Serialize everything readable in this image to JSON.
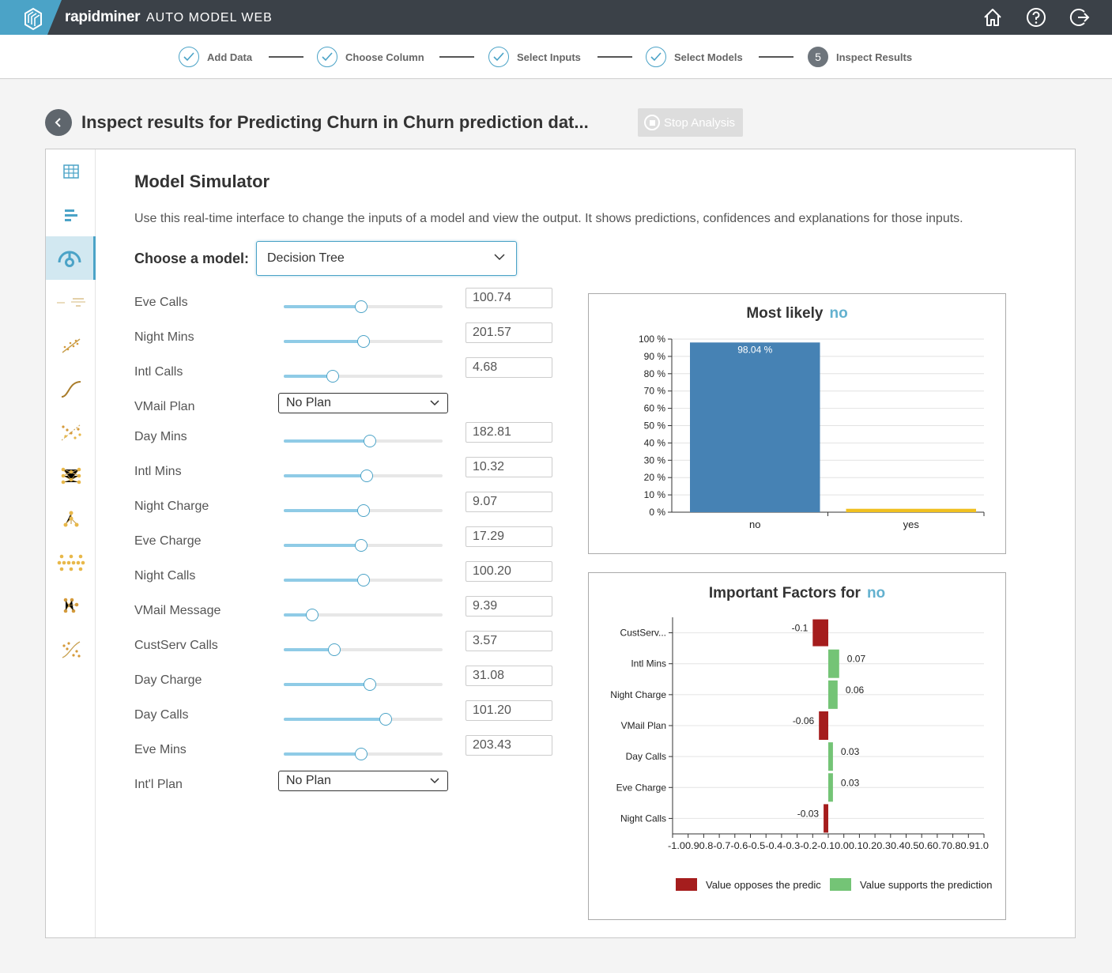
{
  "app": {
    "brand": "rapidminer",
    "product": "AUTO MODEL WEB",
    "icons": [
      "home-icon",
      "help-icon",
      "logout-icon"
    ]
  },
  "wizard": {
    "steps": [
      {
        "label": "Add Data",
        "state": "done"
      },
      {
        "label": "Choose Column",
        "state": "done"
      },
      {
        "label": "Select Inputs",
        "state": "done"
      },
      {
        "label": "Select Models",
        "state": "done"
      },
      {
        "label": "Inspect Results",
        "state": "current",
        "number": "5"
      }
    ]
  },
  "header": {
    "title": "Inspect results for Predicting Churn in Churn prediction dat...",
    "stop_label": "Stop Analysis"
  },
  "sidenav": {
    "items": [
      "table-icon",
      "bar-list-icon",
      "simulator-icon",
      "formula-icon",
      "scatter-line-icon",
      "curve-icon",
      "scatter-dots-icon",
      "neural-net-icon",
      "tree-icon",
      "forest-icon",
      "boosted-tree-icon",
      "svm-icon"
    ],
    "active_index": 2
  },
  "simulator": {
    "title": "Model Simulator",
    "description": "Use this real-time interface to change the inputs of a model and view the output. It shows predictions, confidences and explanations for those inputs.",
    "choose_label": "Choose a model:",
    "model_selected": "Decision Tree",
    "inputs": [
      {
        "label": "Eve Calls",
        "type": "slider",
        "value": "100.74",
        "level": 0.49
      },
      {
        "label": "Night Mins",
        "type": "slider",
        "value": "201.57",
        "level": 0.5
      },
      {
        "label": "Intl Calls",
        "type": "slider",
        "value": "4.68",
        "level": 0.31
      },
      {
        "label": "VMail Plan",
        "type": "select",
        "value": "No Plan"
      },
      {
        "label": "Day Mins",
        "type": "slider",
        "value": "182.81",
        "level": 0.54
      },
      {
        "label": "Intl Mins",
        "type": "slider",
        "value": "10.32",
        "level": 0.52
      },
      {
        "label": "Night Charge",
        "type": "slider",
        "value": "9.07",
        "level": 0.5
      },
      {
        "label": "Eve Charge",
        "type": "slider",
        "value": "17.29",
        "level": 0.49
      },
      {
        "label": "Night Calls",
        "type": "slider",
        "value": "100.20",
        "level": 0.5
      },
      {
        "label": "VMail Message",
        "type": "slider",
        "value": "9.39",
        "level": 0.18
      },
      {
        "label": "CustServ Calls",
        "type": "slider",
        "value": "3.57",
        "level": 0.32
      },
      {
        "label": "Day Charge",
        "type": "slider",
        "value": "31.08",
        "level": 0.54
      },
      {
        "label": "Day Calls",
        "type": "slider",
        "value": "101.20",
        "level": 0.64
      },
      {
        "label": "Eve Mins",
        "type": "slider",
        "value": "203.43",
        "level": 0.49
      },
      {
        "label": "Int'l Plan",
        "type": "select",
        "value": "No Plan"
      }
    ]
  },
  "charts": {
    "likely_title": "Most likely",
    "likely_value": "no",
    "factors_title": "Important Factors for",
    "factors_value": "no",
    "legend_opposes": "Value opposes the predic",
    "legend_supports": "Value supports the prediction"
  },
  "colors": {
    "accent": "#4ba3c7",
    "bar_no": "#4682b4",
    "bar_yes": "#f0c020",
    "oppose": "#a51d1d",
    "support": "#74c476"
  },
  "chart_data": [
    {
      "type": "bar",
      "title": "Most likely no",
      "categories": [
        "no",
        "yes"
      ],
      "values": [
        98.04,
        1.96
      ],
      "data_labels": [
        "98.04 %",
        ""
      ],
      "ylim": [
        0,
        100
      ],
      "yticks": [
        "0 %",
        "10 %",
        "20 %",
        "30 %",
        "40 %",
        "50 %",
        "60 %",
        "70 %",
        "80 %",
        "90 %",
        "100 %"
      ],
      "grid": true
    },
    {
      "type": "bar",
      "orientation": "horizontal",
      "title": "Important Factors for no",
      "categories": [
        "CustServ...",
        "Intl Mins",
        "Night Charge",
        "VMail Plan",
        "Day Calls",
        "Eve Charge",
        "Night Calls"
      ],
      "values": [
        -0.1,
        0.07,
        0.06,
        -0.06,
        0.03,
        0.03,
        -0.03
      ],
      "data_labels": [
        "-0.1",
        "0.07",
        "0.06",
        "-0.06",
        "0.03",
        "0.03",
        "-0.03"
      ],
      "xlim": [
        -1.0,
        1.0
      ],
      "xticks": [
        "-1.0",
        "0.9",
        "0.8",
        "-0.7",
        "-0.6",
        "-0.5",
        "-0.4",
        "-0.3",
        "-0.2",
        "-0.1",
        "0.0",
        "0.1",
        "0.2",
        "0.3",
        "0.4",
        "0.5",
        "0.6",
        "0.7",
        "0.8",
        "0.9",
        "1.0"
      ],
      "legend": [
        "Value opposes the predic",
        "Value supports the prediction"
      ],
      "legend_position": "bottom",
      "grid": true
    }
  ]
}
